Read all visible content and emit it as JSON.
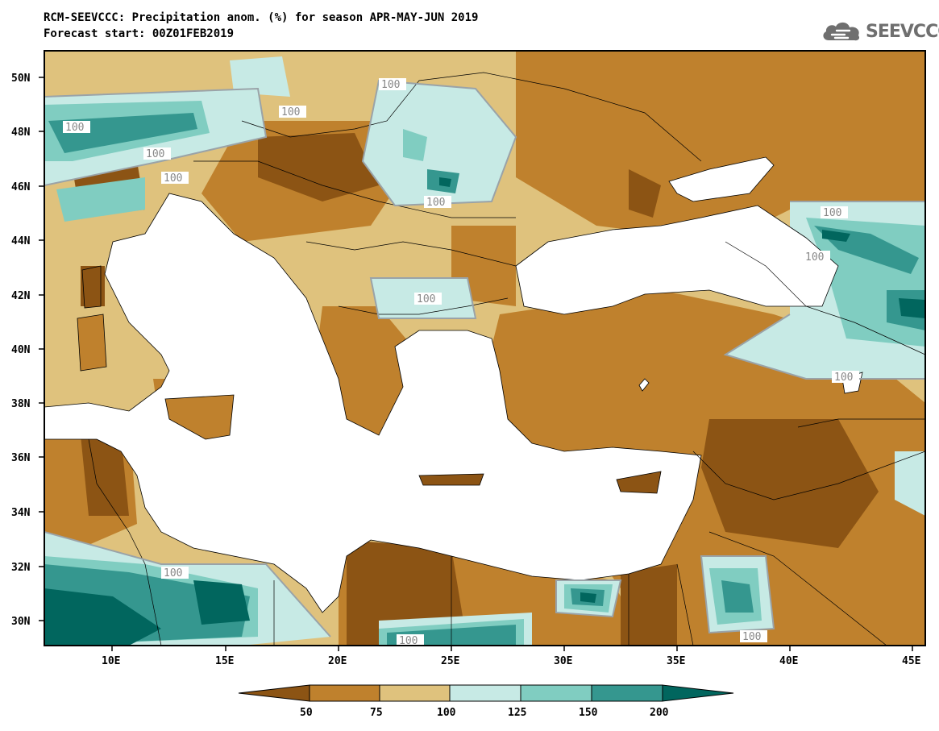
{
  "header": {
    "title_line1": "RCM-SEEVCCC: Precipitation anom. (%) for season APR-MAY-JUN 2019",
    "title_line2": "Forecast start: 00Z01FEB2019",
    "logo_text": "SEEVCCC",
    "logo_icon": "cloud-icon"
  },
  "map": {
    "lat_labels": [
      "50N",
      "48N",
      "46N",
      "44N",
      "42N",
      "40N",
      "38N",
      "36N",
      "34N",
      "32N",
      "30N"
    ],
    "lon_labels": [
      "10E",
      "15E",
      "20E",
      "25E",
      "30E",
      "35E",
      "40E",
      "45E"
    ],
    "contour_label": "100",
    "colors": {
      "below_50": "#8c5414",
      "50_75": "#bf812d",
      "75_100": "#dfc27d",
      "100_125": "#c7eae5",
      "125_150": "#80cdc1",
      "150_200": "#35978f",
      "above_200": "#01665e",
      "land_mask_sea": "#ffffff"
    }
  },
  "colorbar": {
    "labels": [
      "50",
      "75",
      "100",
      "125",
      "150",
      "200"
    ],
    "colors": [
      "#8c5414",
      "#bf812d",
      "#dfc27d",
      "#c7eae5",
      "#80cdc1",
      "#35978f",
      "#01665e"
    ]
  }
}
